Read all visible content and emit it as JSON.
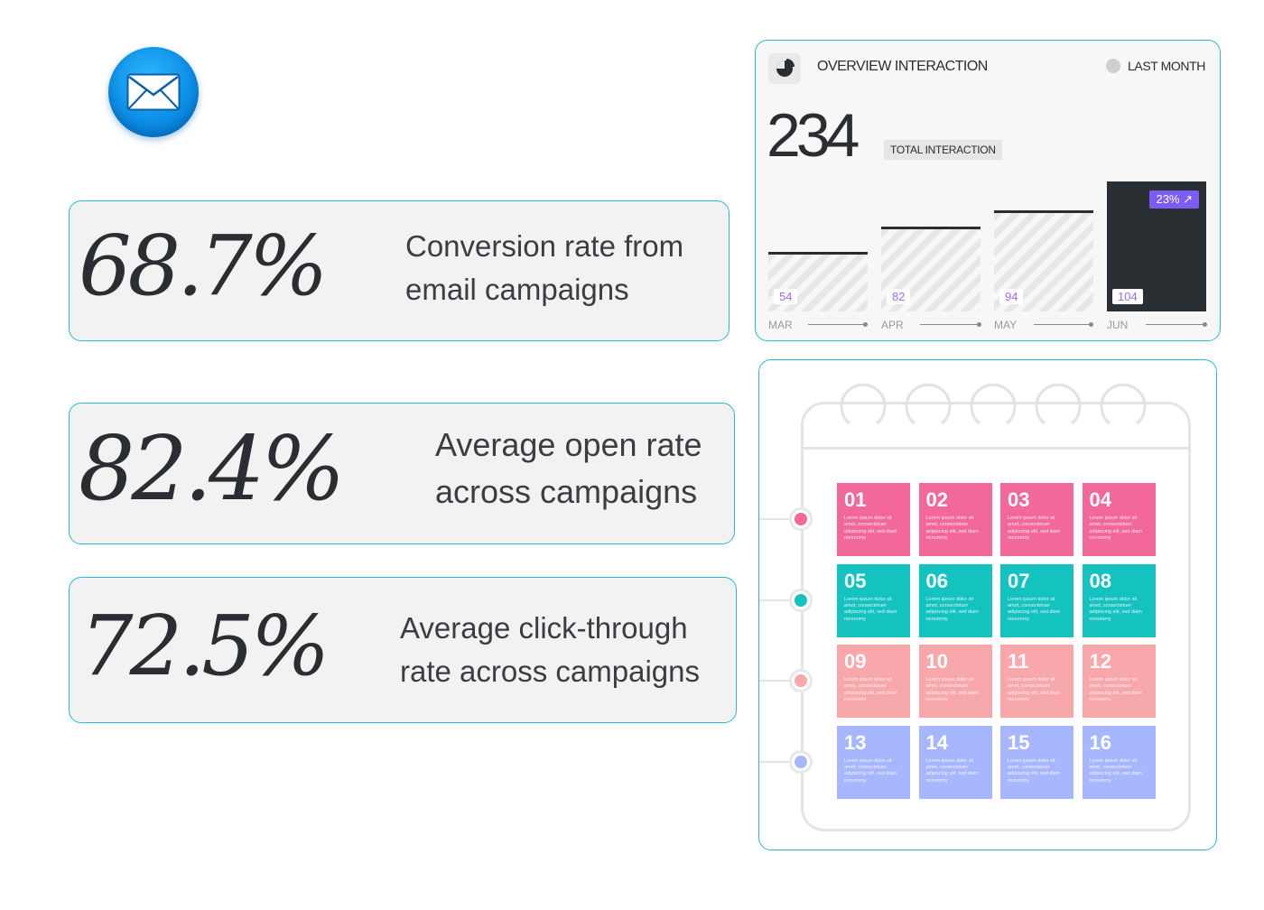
{
  "stats": [
    {
      "value": "68.7%",
      "label": "Conversion rate from\nemail campaigns"
    },
    {
      "value": "82.4%",
      "label": "Average open rate\nacross campaigns"
    },
    {
      "value": "72.5%",
      "label": "Average click-through\nrate across campaigns"
    }
  ],
  "overview": {
    "title": "OVERVIEW INTERACTION",
    "period": "LAST MONTH",
    "total": "234",
    "total_label": "TOTAL INTERACTION",
    "bars": [
      {
        "month": "MAR",
        "value": "54"
      },
      {
        "month": "APR",
        "value": "82"
      },
      {
        "month": "MAY",
        "value": "94"
      },
      {
        "month": "JUN",
        "value": "104",
        "badge": "23% ↗"
      }
    ]
  },
  "calendar": {
    "tiles": [
      {
        "num": "01",
        "color": "#f2689a"
      },
      {
        "num": "02",
        "color": "#f2689a"
      },
      {
        "num": "03",
        "color": "#f2689a"
      },
      {
        "num": "04",
        "color": "#f2689a"
      },
      {
        "num": "05",
        "color": "#14c3c0"
      },
      {
        "num": "06",
        "color": "#14c3c0"
      },
      {
        "num": "07",
        "color": "#14c3c0"
      },
      {
        "num": "08",
        "color": "#14c3c0"
      },
      {
        "num": "09",
        "color": "#f8a7ab"
      },
      {
        "num": "10",
        "color": "#f8a7ab"
      },
      {
        "num": "11",
        "color": "#f8a7ab"
      },
      {
        "num": "12",
        "color": "#f8a7ab"
      },
      {
        "num": "13",
        "color": "#a7b7ff"
      },
      {
        "num": "14",
        "color": "#a7b7ff"
      },
      {
        "num": "15",
        "color": "#a7b7ff"
      },
      {
        "num": "16",
        "color": "#a7b7ff"
      }
    ],
    "tile_text": "Lorem ipsum dolor sit amet, consectetuer adipiscing elit, sed diam nonummy",
    "row_colors": [
      "#f2689a",
      "#14c3c0",
      "#f8a7ab",
      "#a7b7ff"
    ]
  }
}
